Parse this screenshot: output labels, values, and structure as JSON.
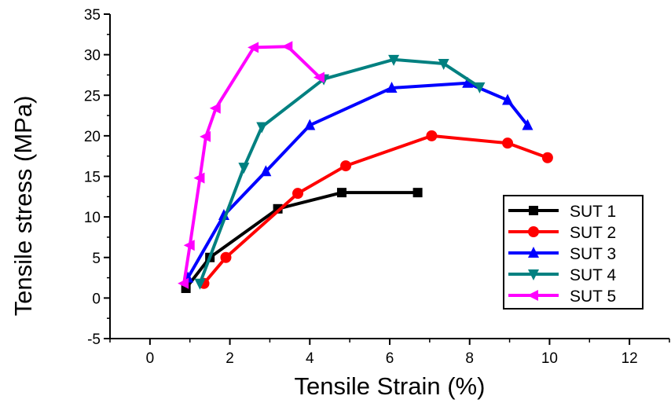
{
  "chart_data": {
    "type": "line",
    "xlabel": "Tensile Strain (%)",
    "ylabel": "Tensile stress (MPa)",
    "xlim": [
      -1,
      13
    ],
    "ylim": [
      -5,
      35
    ],
    "xticks": [
      0,
      2,
      4,
      6,
      8,
      10,
      12
    ],
    "yticks": [
      -5,
      0,
      5,
      10,
      15,
      20,
      25,
      30,
      35
    ],
    "xtick_labels": [
      "0",
      "2",
      "4",
      "6",
      "8",
      "10",
      "12"
    ],
    "ytick_labels": [
      "-5",
      "0",
      "5",
      "10",
      "15",
      "20",
      "25",
      "30",
      "35"
    ],
    "grid": false,
    "legend_position": "right",
    "series": [
      {
        "name": "SUT 1",
        "color": "#000000",
        "marker": "square",
        "x": [
          0.9,
          1.5,
          3.2,
          4.8,
          6.7
        ],
        "y": [
          1.2,
          5.0,
          11.0,
          13.0,
          13.0
        ]
      },
      {
        "name": "SUT 2",
        "color": "#ff0000",
        "marker": "circle",
        "x": [
          1.35,
          1.9,
          3.7,
          4.9,
          7.05,
          8.95,
          9.95
        ],
        "y": [
          1.8,
          5.0,
          12.9,
          16.3,
          20.0,
          19.1,
          17.3
        ]
      },
      {
        "name": "SUT 3",
        "color": "#0000ff",
        "marker": "triangle-up",
        "x": [
          0.95,
          1.85,
          2.9,
          4.0,
          6.05,
          7.95,
          8.95,
          9.45
        ],
        "y": [
          2.5,
          10.2,
          15.6,
          21.3,
          25.9,
          26.5,
          24.4,
          21.3
        ]
      },
      {
        "name": "SUT 4",
        "color": "#008080",
        "marker": "triangle-down",
        "x": [
          1.25,
          2.35,
          2.8,
          4.35,
          6.1,
          7.35,
          8.25
        ],
        "y": [
          1.8,
          16.1,
          21.1,
          27.0,
          29.4,
          28.9,
          26.0
        ]
      },
      {
        "name": "SUT 5",
        "color": "#ff00ff",
        "marker": "triangle-left",
        "x": [
          0.85,
          1.0,
          1.25,
          1.4,
          1.65,
          2.6,
          3.45,
          4.25
        ],
        "y": [
          1.8,
          6.5,
          14.8,
          19.9,
          23.4,
          30.9,
          31.0,
          27.2
        ]
      }
    ]
  }
}
